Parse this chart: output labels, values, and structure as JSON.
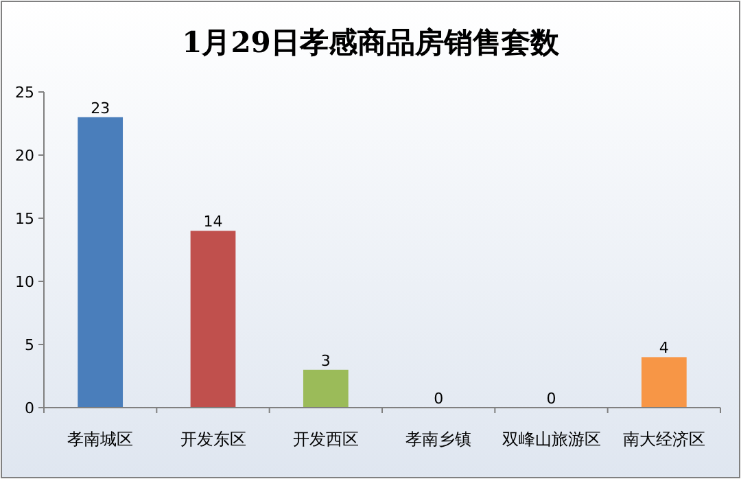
{
  "chart_data": {
    "type": "bar",
    "title": "1月29日孝感商品房销售套数",
    "categories": [
      "孝南城区",
      "开发东区",
      "开发西区",
      "孝南乡镇",
      "双峰山旅游区",
      "南大经济区"
    ],
    "values": [
      23,
      14,
      3,
      0,
      0,
      4
    ],
    "colors": [
      "#4a7ebb",
      "#c0504d",
      "#9bbb59",
      "#4f81bd",
      "#4f81bd",
      "#f79646"
    ],
    "ylim": [
      0,
      25
    ],
    "yticks": [
      0,
      5,
      10,
      15,
      20,
      25
    ],
    "data_labels": true
  }
}
